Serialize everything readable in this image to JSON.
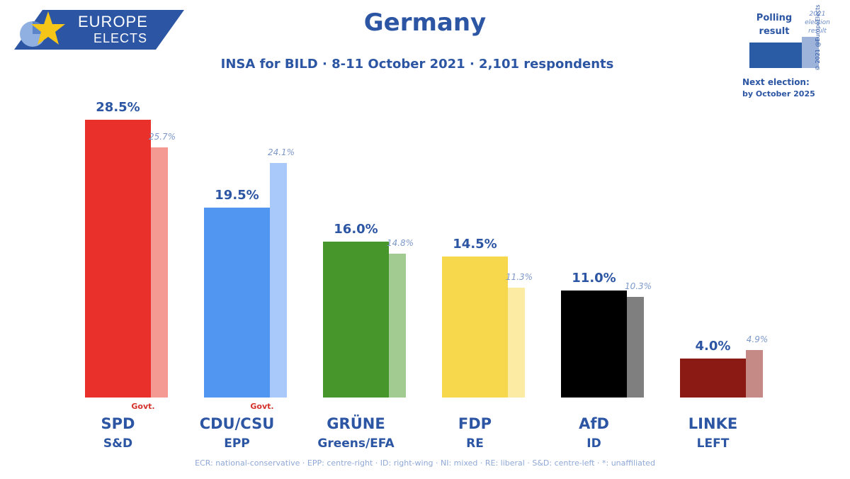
{
  "logo": {
    "line1": "EUROPE",
    "line2": "ELECTS"
  },
  "legend": {
    "polling_label_1": "Polling",
    "polling_label_2": "result",
    "election_label_1": "2021",
    "election_label_2": "election",
    "election_label_3": "result",
    "copyright": "© 2021 @EuropeElects",
    "next_election_label": "Next election:",
    "next_election_date": "by October 2025"
  },
  "footnote": "ECR: national-conservative · EPP: centre-right · ID: right-wing · NI: mixed · RE: liberal · S&D: centre-left · *: unaffiliated",
  "colors": {
    "brand": "#2c56a3",
    "govt": "#d4322b"
  },
  "chart_data": {
    "type": "bar",
    "title": "Germany",
    "subtitle": "INSA for BILD · 8-11 October 2021 · 2,101 respondents",
    "ylim": [
      0,
      30
    ],
    "categories": [
      "SPD",
      "CDU/CSU",
      "GRÜNE",
      "FDP",
      "AfD",
      "LINKE"
    ],
    "groups": [
      "S&D",
      "EPP",
      "Greens/EFA",
      "RE",
      "ID",
      "LEFT"
    ],
    "govt": [
      "Govt.",
      "Govt.",
      "",
      "",
      "",
      ""
    ],
    "series": [
      {
        "name": "Polling result",
        "values": [
          28.5,
          19.5,
          16.0,
          14.5,
          11.0,
          4.0
        ],
        "labels": [
          "28.5%",
          "19.5%",
          "16.0%",
          "14.5%",
          "11.0%",
          "4.0%"
        ],
        "colors": [
          "#e9302a",
          "#5196f0",
          "#46962b",
          "#f7d74b",
          "#000000",
          "#8b1a14"
        ]
      },
      {
        "name": "2021 election result",
        "values": [
          25.7,
          24.1,
          14.8,
          11.3,
          10.3,
          4.9
        ],
        "labels": [
          "25.7%",
          "24.1%",
          "14.8%",
          "11.3%",
          "10.3%",
          "4.9%"
        ],
        "colors": [
          "#f49a93",
          "#a9c9fa",
          "#a2cb92",
          "#fbeba3",
          "#7f7f7f",
          "#c58a86"
        ]
      }
    ]
  }
}
